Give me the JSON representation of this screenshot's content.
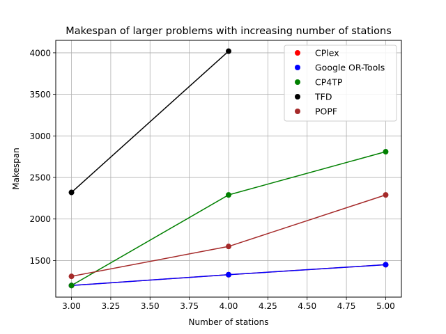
{
  "chart_data": {
    "type": "line",
    "title": "Makespan of larger problems with increasing number of stations",
    "xlabel": "Number of stations",
    "ylabel": "Makespan",
    "xlim": [
      2.9,
      5.1
    ],
    "ylim": [
      1060,
      4150
    ],
    "xticks": [
      3.0,
      3.25,
      3.5,
      3.75,
      4.0,
      4.25,
      4.5,
      4.75,
      5.0
    ],
    "xtick_labels": [
      "3.00",
      "3.25",
      "3.50",
      "3.75",
      "4.00",
      "4.25",
      "4.50",
      "4.75",
      "5.00"
    ],
    "yticks": [
      1500,
      2000,
      2500,
      3000,
      3500,
      4000
    ],
    "ytick_labels": [
      "1500",
      "2000",
      "2500",
      "3000",
      "3500",
      "4000"
    ],
    "grid": true,
    "legend_position": "top-right",
    "series": [
      {
        "name": "CPlex",
        "color": "#ff0000",
        "x": [
          3,
          4,
          5
        ],
        "y": [
          1200,
          1330,
          1450
        ]
      },
      {
        "name": "Google OR-Tools",
        "color": "#0000ff",
        "x": [
          3,
          4,
          5
        ],
        "y": [
          1200,
          1330,
          1450
        ]
      },
      {
        "name": "CP4TP",
        "color": "#008000",
        "x": [
          3,
          4,
          5
        ],
        "y": [
          1200,
          2290,
          2810
        ]
      },
      {
        "name": "TFD",
        "color": "#000000",
        "x": [
          3,
          4
        ],
        "y": [
          2320,
          4020
        ]
      },
      {
        "name": "POPF",
        "color": "#a52a2a",
        "x": [
          3,
          4,
          5
        ],
        "y": [
          1310,
          1670,
          2290
        ]
      }
    ]
  }
}
